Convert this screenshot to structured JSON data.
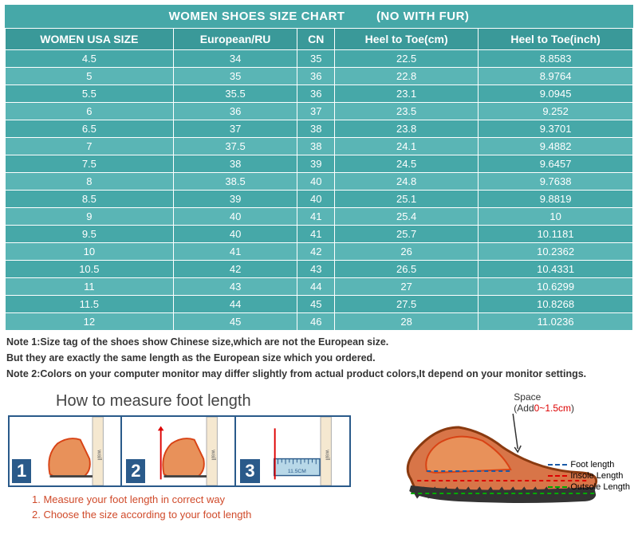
{
  "title": "WOMEN SHOES SIZE CHART",
  "subtitle": "(NO WITH FUR)",
  "columns": [
    "WOMEN USA SIZE",
    "European/RU",
    "CN",
    "Heel to Toe(cm)",
    "Heel to Toe(inch)"
  ],
  "rows": [
    [
      "4.5",
      "34",
      "35",
      "22.5",
      "8.8583"
    ],
    [
      "5",
      "35",
      "36",
      "22.8",
      "8.9764"
    ],
    [
      "5.5",
      "35.5",
      "36",
      "23.1",
      "9.0945"
    ],
    [
      "6",
      "36",
      "37",
      "23.5",
      "9.252"
    ],
    [
      "6.5",
      "37",
      "38",
      "23.8",
      "9.3701"
    ],
    [
      "7",
      "37.5",
      "38",
      "24.1",
      "9.4882"
    ],
    [
      "7.5",
      "38",
      "39",
      "24.5",
      "9.6457"
    ],
    [
      "8",
      "38.5",
      "40",
      "24.8",
      "9.7638"
    ],
    [
      "8.5",
      "39",
      "40",
      "25.1",
      "9.8819"
    ],
    [
      "9",
      "40",
      "41",
      "25.4",
      "10"
    ],
    [
      "9.5",
      "40",
      "41",
      "25.7",
      "10.1181"
    ],
    [
      "10",
      "41",
      "42",
      "26",
      "10.2362"
    ],
    [
      "10.5",
      "42",
      "43",
      "26.5",
      "10.4331"
    ],
    [
      "11",
      "43",
      "44",
      "27",
      "10.6299"
    ],
    [
      "11.5",
      "44",
      "45",
      "27.5",
      "10.8268"
    ],
    [
      "12",
      "45",
      "46",
      "28",
      "11.0236"
    ]
  ],
  "notes": {
    "n1": "Note 1:Size tag of the shoes show Chinese size,which are not the European size.",
    "n2": "But they are exactly the same length as the European size which you ordered.",
    "n3": "Note 2:Colors on your computer monitor may differ slightly from actual product colors,It depend on your monitor settings."
  },
  "howto": {
    "title": "How to measure foot length",
    "step_wall": "wall",
    "ruler_val": "11.5CM",
    "instr1": "1. Measure your foot length in correct way",
    "instr2": "2. Choose the size according to your foot length",
    "space_label": "Space",
    "space_add": "(Add",
    "space_range": "0~1.5cm",
    "space_close": ")",
    "legend_foot": "Foot length",
    "legend_insole": "Insole Length",
    "legend_outsole": "Outsole Length"
  },
  "colors": {
    "table_bg": "#46a8a8",
    "table_alt": "#5ab5b5",
    "header_bg": "#3a9999",
    "border": "#ffffff",
    "instr_color": "#d04a2a",
    "foot_fill": "#e8915a",
    "foot_outline": "#d84315",
    "shoe_fill": "#d87548",
    "sole": "#333333"
  }
}
